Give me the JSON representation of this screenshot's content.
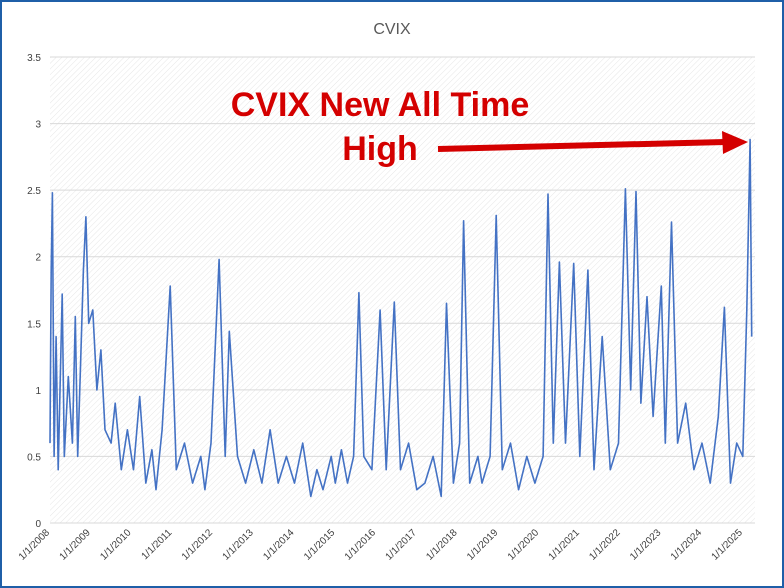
{
  "chart_data": {
    "type": "line",
    "title": "CVIX",
    "xlabel": "",
    "ylabel": "",
    "ylim": [
      0,
      3.5
    ],
    "y_ticks": [
      "0",
      "0.5",
      "1",
      "1.5",
      "2",
      "2.5",
      "3",
      "3.5"
    ],
    "x_tick_labels": [
      "1/1/2008",
      "1/1/2009",
      "1/1/2010",
      "1/1/2011",
      "1/1/2012",
      "1/1/2013",
      "1/1/2014",
      "1/1/2015",
      "1/1/2016",
      "1/1/2017",
      "1/1/2018",
      "1/1/2019",
      "1/1/2020",
      "1/1/2021",
      "1/1/2022",
      "1/1/2023",
      "1/1/2024",
      "1/1/2025"
    ],
    "xlim": [
      2008.0,
      2025.3
    ],
    "grid": true,
    "series_color": "#4472c4",
    "annotation": {
      "line1": "CVIX New All Time",
      "line2": "High",
      "color": "#d40000"
    },
    "series": [
      {
        "values": [
          [
            2008.0,
            0.6
          ],
          [
            2008.03,
            1.9
          ],
          [
            2008.06,
            2.48
          ],
          [
            2008.1,
            0.5
          ],
          [
            2008.15,
            1.4
          ],
          [
            2008.2,
            0.4
          ],
          [
            2008.3,
            1.72
          ],
          [
            2008.35,
            0.5
          ],
          [
            2008.45,
            1.1
          ],
          [
            2008.55,
            0.6
          ],
          [
            2008.62,
            1.55
          ],
          [
            2008.68,
            0.5
          ],
          [
            2008.75,
            1.2
          ],
          [
            2008.82,
            1.9
          ],
          [
            2008.88,
            2.3
          ],
          [
            2008.95,
            1.5
          ],
          [
            2009.05,
            1.6
          ],
          [
            2009.15,
            1.0
          ],
          [
            2009.25,
            1.3
          ],
          [
            2009.35,
            0.7
          ],
          [
            2009.5,
            0.6
          ],
          [
            2009.6,
            0.9
          ],
          [
            2009.75,
            0.4
          ],
          [
            2009.9,
            0.7
          ],
          [
            2010.05,
            0.4
          ],
          [
            2010.2,
            0.95
          ],
          [
            2010.35,
            0.3
          ],
          [
            2010.5,
            0.55
          ],
          [
            2010.6,
            0.25
          ],
          [
            2010.75,
            0.7
          ],
          [
            2010.95,
            1.78
          ],
          [
            2011.1,
            0.4
          ],
          [
            2011.3,
            0.6
          ],
          [
            2011.5,
            0.3
          ],
          [
            2011.7,
            0.5
          ],
          [
            2011.8,
            0.25
          ],
          [
            2011.95,
            0.6
          ],
          [
            2012.15,
            1.98
          ],
          [
            2012.3,
            0.5
          ],
          [
            2012.4,
            1.44
          ],
          [
            2012.6,
            0.5
          ],
          [
            2012.8,
            0.3
          ],
          [
            2013.0,
            0.55
          ],
          [
            2013.2,
            0.3
          ],
          [
            2013.4,
            0.7
          ],
          [
            2013.6,
            0.3
          ],
          [
            2013.8,
            0.5
          ],
          [
            2014.0,
            0.3
          ],
          [
            2014.2,
            0.6
          ],
          [
            2014.4,
            0.2
          ],
          [
            2014.55,
            0.4
          ],
          [
            2014.7,
            0.25
          ],
          [
            2014.9,
            0.5
          ],
          [
            2015.0,
            0.3
          ],
          [
            2015.15,
            0.55
          ],
          [
            2015.3,
            0.3
          ],
          [
            2015.45,
            0.5
          ],
          [
            2015.58,
            1.73
          ],
          [
            2015.7,
            0.5
          ],
          [
            2015.9,
            0.4
          ],
          [
            2016.1,
            1.6
          ],
          [
            2016.25,
            0.4
          ],
          [
            2016.45,
            1.66
          ],
          [
            2016.6,
            0.4
          ],
          [
            2016.8,
            0.6
          ],
          [
            2017.0,
            0.25
          ],
          [
            2017.2,
            0.3
          ],
          [
            2017.4,
            0.5
          ],
          [
            2017.6,
            0.2
          ],
          [
            2017.73,
            1.65
          ],
          [
            2017.9,
            0.3
          ],
          [
            2018.05,
            0.6
          ],
          [
            2018.15,
            2.27
          ],
          [
            2018.3,
            0.3
          ],
          [
            2018.5,
            0.5
          ],
          [
            2018.6,
            0.3
          ],
          [
            2018.8,
            0.5
          ],
          [
            2018.95,
            2.31
          ],
          [
            2019.1,
            0.4
          ],
          [
            2019.3,
            0.6
          ],
          [
            2019.5,
            0.25
          ],
          [
            2019.7,
            0.5
          ],
          [
            2019.9,
            0.3
          ],
          [
            2020.1,
            0.5
          ],
          [
            2020.22,
            2.47
          ],
          [
            2020.35,
            0.6
          ],
          [
            2020.5,
            1.96
          ],
          [
            2020.65,
            0.6
          ],
          [
            2020.85,
            1.95
          ],
          [
            2021.0,
            0.5
          ],
          [
            2021.2,
            1.9
          ],
          [
            2021.35,
            0.4
          ],
          [
            2021.55,
            1.4
          ],
          [
            2021.75,
            0.4
          ],
          [
            2021.95,
            0.6
          ],
          [
            2022.12,
            2.51
          ],
          [
            2022.25,
            1.0
          ],
          [
            2022.38,
            2.49
          ],
          [
            2022.5,
            0.9
          ],
          [
            2022.65,
            1.7
          ],
          [
            2022.8,
            0.8
          ],
          [
            2023.0,
            1.78
          ],
          [
            2023.1,
            0.6
          ],
          [
            2023.25,
            2.26
          ],
          [
            2023.4,
            0.6
          ],
          [
            2023.6,
            0.9
          ],
          [
            2023.8,
            0.4
          ],
          [
            2024.0,
            0.6
          ],
          [
            2024.2,
            0.3
          ],
          [
            2024.4,
            0.8
          ],
          [
            2024.55,
            1.62
          ],
          [
            2024.7,
            0.3
          ],
          [
            2024.85,
            0.6
          ],
          [
            2025.0,
            0.5
          ],
          [
            2025.1,
            1.6
          ],
          [
            2025.18,
            2.88
          ],
          [
            2025.22,
            1.4
          ]
        ]
      }
    ]
  }
}
